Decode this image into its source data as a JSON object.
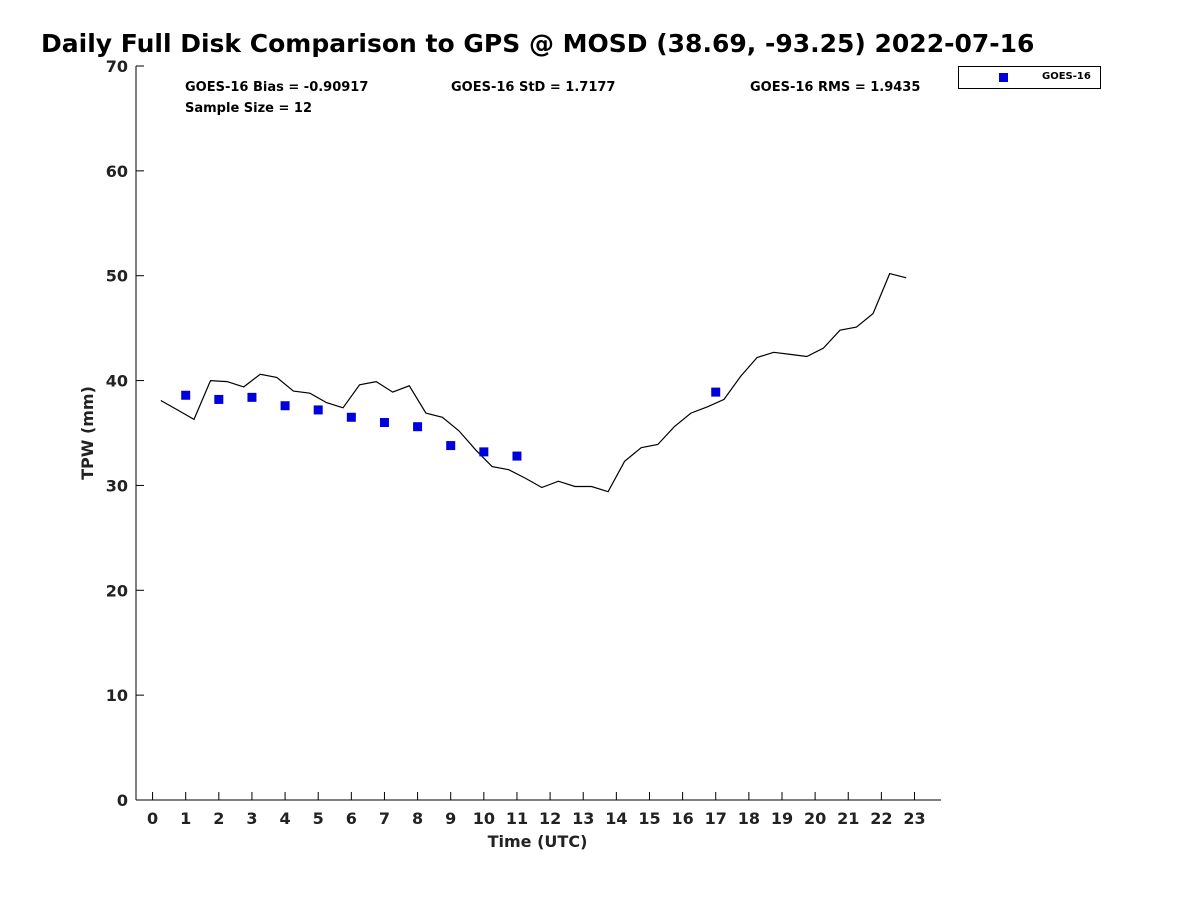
{
  "chart_data": {
    "type": "scatter",
    "title": "Daily Full Disk Comparison to GPS @ MOSD (38.69, -93.25) 2022-07-16",
    "xlabel": "Time (UTC)",
    "ylabel": "TPW (mm)",
    "xlim": [
      -0.5,
      23.8
    ],
    "ylim": [
      0,
      70
    ],
    "x_ticks": [
      0,
      1,
      2,
      3,
      4,
      5,
      6,
      7,
      8,
      9,
      10,
      11,
      12,
      13,
      14,
      15,
      16,
      17,
      18,
      19,
      20,
      21,
      22,
      23
    ],
    "y_ticks": [
      0,
      10,
      20,
      30,
      40,
      50,
      60,
      70
    ],
    "grid": false,
    "legend_position": "top-right outside",
    "stats": {
      "bias": "GOES-16 Bias = -0.90917",
      "std": "GOES-16 StD = 1.7177",
      "rms": "GOES-16 RMS = 1.9435",
      "sample": "Sample Size = 12"
    },
    "series": [
      {
        "name": "GOES-16",
        "kind": "markers",
        "color": "#0000dd",
        "x": [
          1,
          2,
          3,
          4,
          5,
          6,
          7,
          8,
          9,
          10,
          11,
          17
        ],
        "y": [
          38.6,
          38.2,
          38.4,
          37.6,
          37.2,
          36.5,
          36.0,
          35.6,
          33.8,
          33.2,
          32.8,
          38.9
        ]
      },
      {
        "kind": "line",
        "color": "#000000",
        "x": [
          0.25,
          0.75,
          1.25,
          1.75,
          2.25,
          2.75,
          3.25,
          3.75,
          4.25,
          4.75,
          5.25,
          5.75,
          6.25,
          6.75,
          7.25,
          7.75,
          8.25,
          8.75,
          9.25,
          9.75,
          10.25,
          10.75,
          11.25,
          11.75,
          12.25,
          12.75,
          13.25,
          13.75,
          14.25,
          14.75,
          15.25,
          15.75,
          16.25,
          16.75,
          17.25,
          17.75,
          18.25,
          18.75,
          19.25,
          19.75,
          20.25,
          20.75,
          21.25,
          21.75,
          22.25,
          22.75
        ],
        "y": [
          38.1,
          37.2,
          36.3,
          40.0,
          39.9,
          39.4,
          40.6,
          40.3,
          39.0,
          38.8,
          37.9,
          37.4,
          39.6,
          39.9,
          38.9,
          39.5,
          36.9,
          36.5,
          35.2,
          33.4,
          31.8,
          31.5,
          30.7,
          29.8,
          30.4,
          29.9,
          29.9,
          29.4,
          32.3,
          33.6,
          33.9,
          35.6,
          36.9,
          37.5,
          38.2,
          40.4,
          42.2,
          42.7,
          42.5,
          42.3,
          43.1,
          44.8,
          45.1,
          46.4,
          50.2,
          49.8
        ]
      }
    ]
  }
}
